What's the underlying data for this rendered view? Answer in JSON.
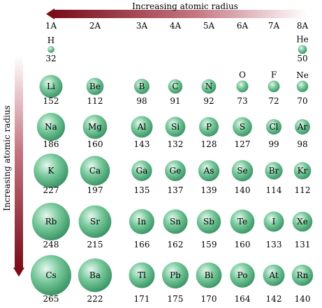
{
  "top_arrow_label": "Increasing atomic radius",
  "side_arrow_label": "Increasing atomic radius",
  "groups": [
    "1A",
    "2A",
    "3A",
    "4A",
    "5A",
    "6A",
    "7A",
    "8A"
  ],
  "colors": {
    "arrow_dark": "#7a0d1a",
    "arrow_light": "#ffffff",
    "sphere_light": "#e6f7ee",
    "sphere_mid": "#77c89b",
    "sphere_dark": "#2f8a5a"
  },
  "elements": [
    {
      "symbol": "H",
      "radius": "32",
      "col": 0,
      "row": 0
    },
    {
      "symbol": "He",
      "radius": "50",
      "col": 7,
      "row": 0
    },
    {
      "symbol": "Li",
      "radius": "152",
      "col": 0,
      "row": 1
    },
    {
      "symbol": "Be",
      "radius": "112",
      "col": 1,
      "row": 1
    },
    {
      "symbol": "B",
      "radius": "98",
      "col": 2,
      "row": 1
    },
    {
      "symbol": "C",
      "radius": "91",
      "col": 3,
      "row": 1
    },
    {
      "symbol": "N",
      "radius": "92",
      "col": 4,
      "row": 1
    },
    {
      "symbol": "O",
      "radius": "73",
      "col": 5,
      "row": 1
    },
    {
      "symbol": "F",
      "radius": "72",
      "col": 6,
      "row": 1
    },
    {
      "symbol": "Ne",
      "radius": "70",
      "col": 7,
      "row": 1
    },
    {
      "symbol": "Na",
      "radius": "186",
      "col": 0,
      "row": 2
    },
    {
      "symbol": "Mg",
      "radius": "160",
      "col": 1,
      "row": 2
    },
    {
      "symbol": "Al",
      "radius": "143",
      "col": 2,
      "row": 2
    },
    {
      "symbol": "Si",
      "radius": "132",
      "col": 3,
      "row": 2
    },
    {
      "symbol": "P",
      "radius": "128",
      "col": 4,
      "row": 2
    },
    {
      "symbol": "S",
      "radius": "127",
      "col": 5,
      "row": 2
    },
    {
      "symbol": "Cl",
      "radius": "99",
      "col": 6,
      "row": 2
    },
    {
      "symbol": "Ar",
      "radius": "98",
      "col": 7,
      "row": 2
    },
    {
      "symbol": "K",
      "radius": "227",
      "col": 0,
      "row": 3
    },
    {
      "symbol": "Ca",
      "radius": "197",
      "col": 1,
      "row": 3
    },
    {
      "symbol": "Ga",
      "radius": "135",
      "col": 2,
      "row": 3
    },
    {
      "symbol": "Ge",
      "radius": "137",
      "col": 3,
      "row": 3
    },
    {
      "symbol": "As",
      "radius": "139",
      "col": 4,
      "row": 3
    },
    {
      "symbol": "Se",
      "radius": "140",
      "col": 5,
      "row": 3
    },
    {
      "symbol": "Br",
      "radius": "114",
      "col": 6,
      "row": 3
    },
    {
      "symbol": "Kr",
      "radius": "112",
      "col": 7,
      "row": 3
    },
    {
      "symbol": "Rb",
      "radius": "248",
      "col": 0,
      "row": 4
    },
    {
      "symbol": "Sr",
      "radius": "215",
      "col": 1,
      "row": 4
    },
    {
      "symbol": "In",
      "radius": "166",
      "col": 2,
      "row": 4
    },
    {
      "symbol": "Sn",
      "radius": "162",
      "col": 3,
      "row": 4
    },
    {
      "symbol": "Sb",
      "radius": "159",
      "col": 4,
      "row": 4
    },
    {
      "symbol": "Te",
      "radius": "160",
      "col": 5,
      "row": 4
    },
    {
      "symbol": "I",
      "radius": "133",
      "col": 6,
      "row": 4
    },
    {
      "symbol": "Xe",
      "radius": "131",
      "col": 7,
      "row": 4
    },
    {
      "symbol": "Cs",
      "radius": "265",
      "col": 0,
      "row": 5
    },
    {
      "symbol": "Ba",
      "radius": "222",
      "col": 1,
      "row": 5
    },
    {
      "symbol": "Tl",
      "radius": "171",
      "col": 2,
      "row": 5
    },
    {
      "symbol": "Pb",
      "radius": "175",
      "col": 3,
      "row": 5
    },
    {
      "symbol": "Bi",
      "radius": "170",
      "col": 4,
      "row": 5
    },
    {
      "symbol": "Po",
      "radius": "164",
      "col": 5,
      "row": 5
    },
    {
      "symbol": "At",
      "radius": "142",
      "col": 6,
      "row": 5
    },
    {
      "symbol": "Rn",
      "radius": "140",
      "col": 7,
      "row": 5
    }
  ]
}
